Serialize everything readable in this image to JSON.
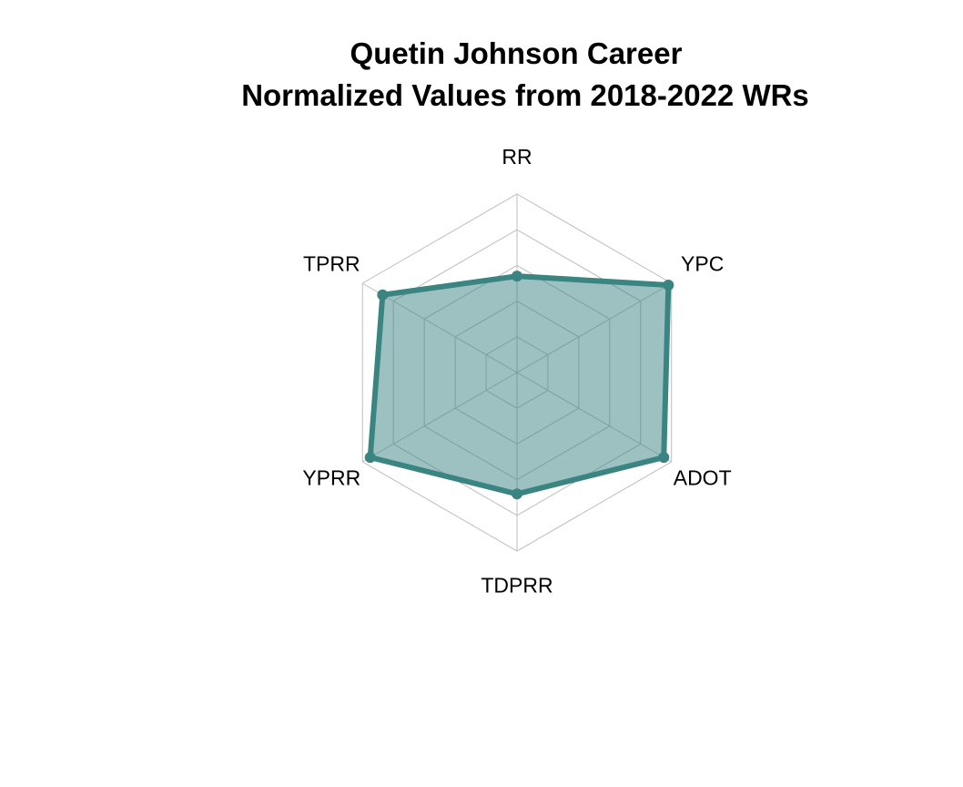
{
  "chart_data": {
    "type": "radar",
    "title_line1": "Quetin Johnson Career",
    "title_line2": "Normalized Values from 2018-2022 WRs",
    "axes": [
      "RR",
      "YPC",
      "ADOT",
      "TDPRR",
      "YPRR",
      "TPRR"
    ],
    "range": [
      0,
      1
    ],
    "grid_levels": 5,
    "series": [
      {
        "values": [
          0.54,
          0.98,
          0.95,
          0.68,
          0.95,
          0.87
        ]
      }
    ],
    "colors": {
      "line": "#3a8482",
      "fill": "#3a8482",
      "fill_opacity": 0.5,
      "grid": "#bdbdbd"
    }
  }
}
